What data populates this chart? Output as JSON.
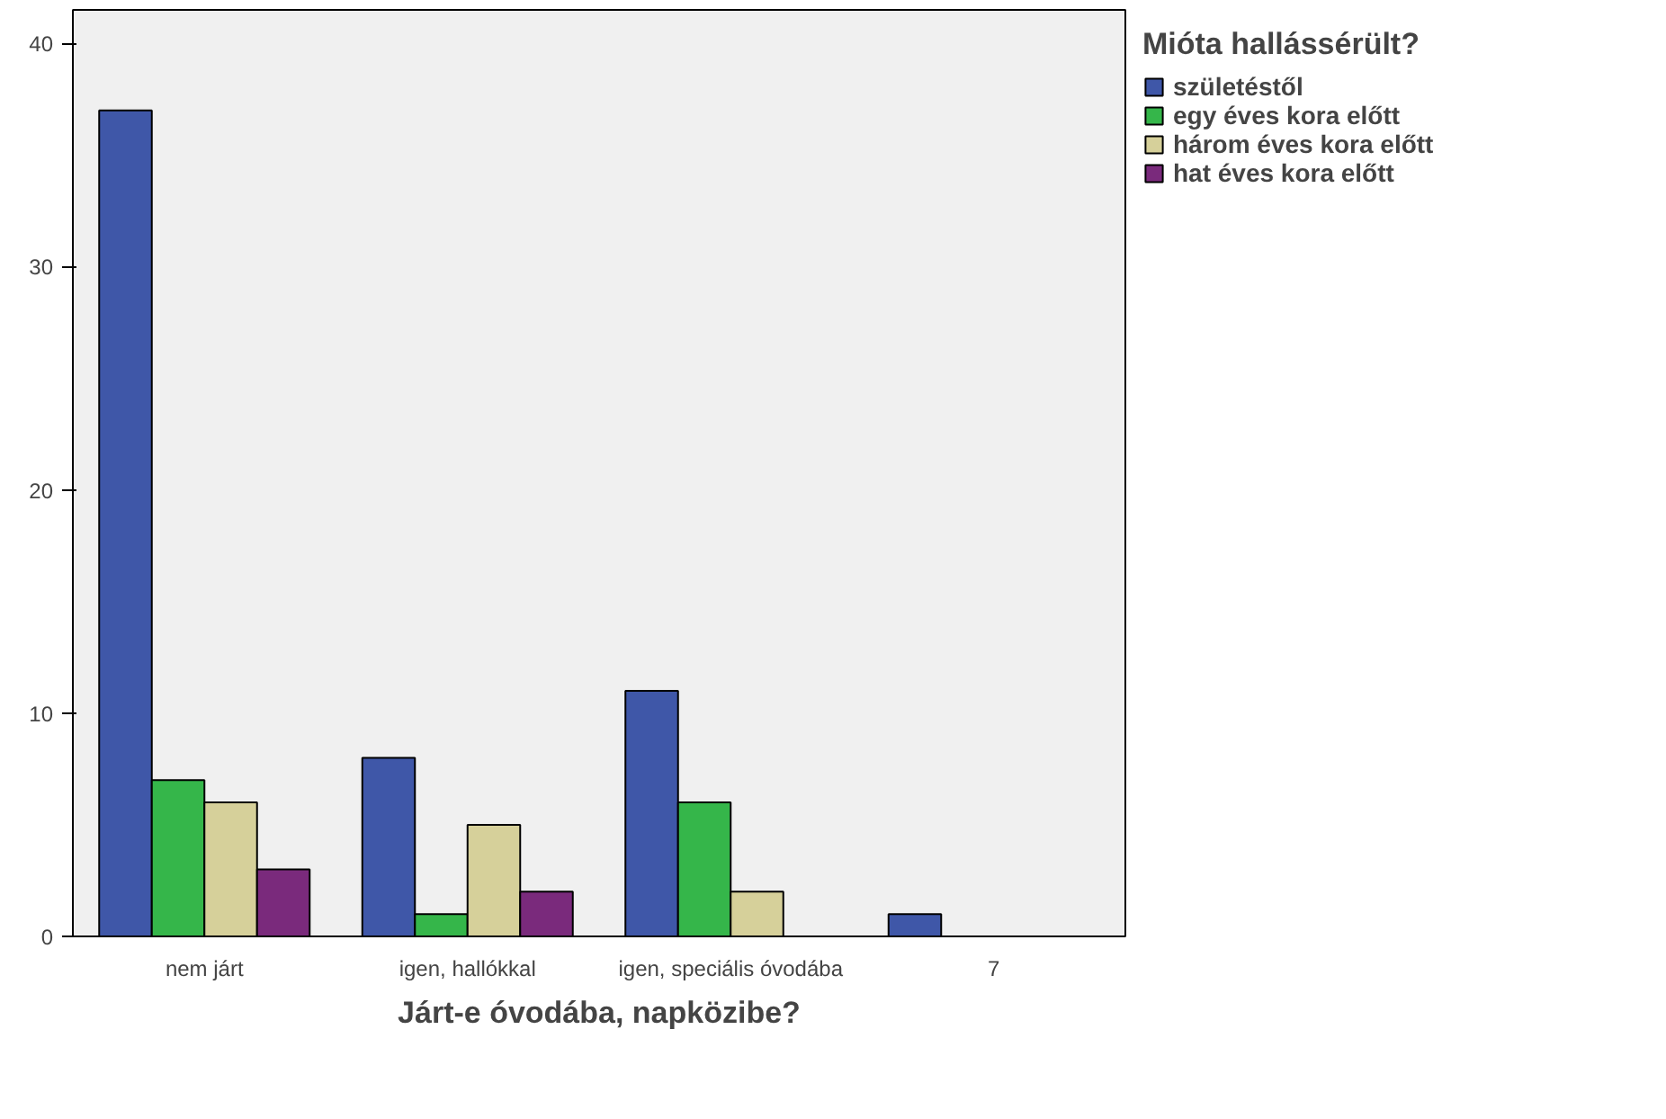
{
  "chart_data": {
    "type": "bar",
    "xlabel": "Járt-e óvodába, napközibe?",
    "legend_title": "Mióta hallássérült?",
    "categories": [
      "nem járt",
      "igen, hallókkal",
      "igen, speciális óvodába",
      "7"
    ],
    "series": [
      {
        "name": "születéstől",
        "color": "#3f57a8",
        "values": [
          37,
          8,
          11,
          1
        ]
      },
      {
        "name": "egy éves kora előtt",
        "color": "#35b64a",
        "values": [
          7,
          1,
          6,
          null
        ]
      },
      {
        "name": "három éves kora előtt",
        "color": "#d6d09a",
        "values": [
          6,
          5,
          2,
          null
        ]
      },
      {
        "name": "hat éves kora előtt",
        "color": "#7a2a7c",
        "values": [
          3,
          2,
          null,
          null
        ]
      }
    ],
    "ylim": [
      0,
      41.5
    ],
    "yticks": [
      0,
      10,
      20,
      30,
      40
    ],
    "grid": false,
    "legend": "right"
  }
}
